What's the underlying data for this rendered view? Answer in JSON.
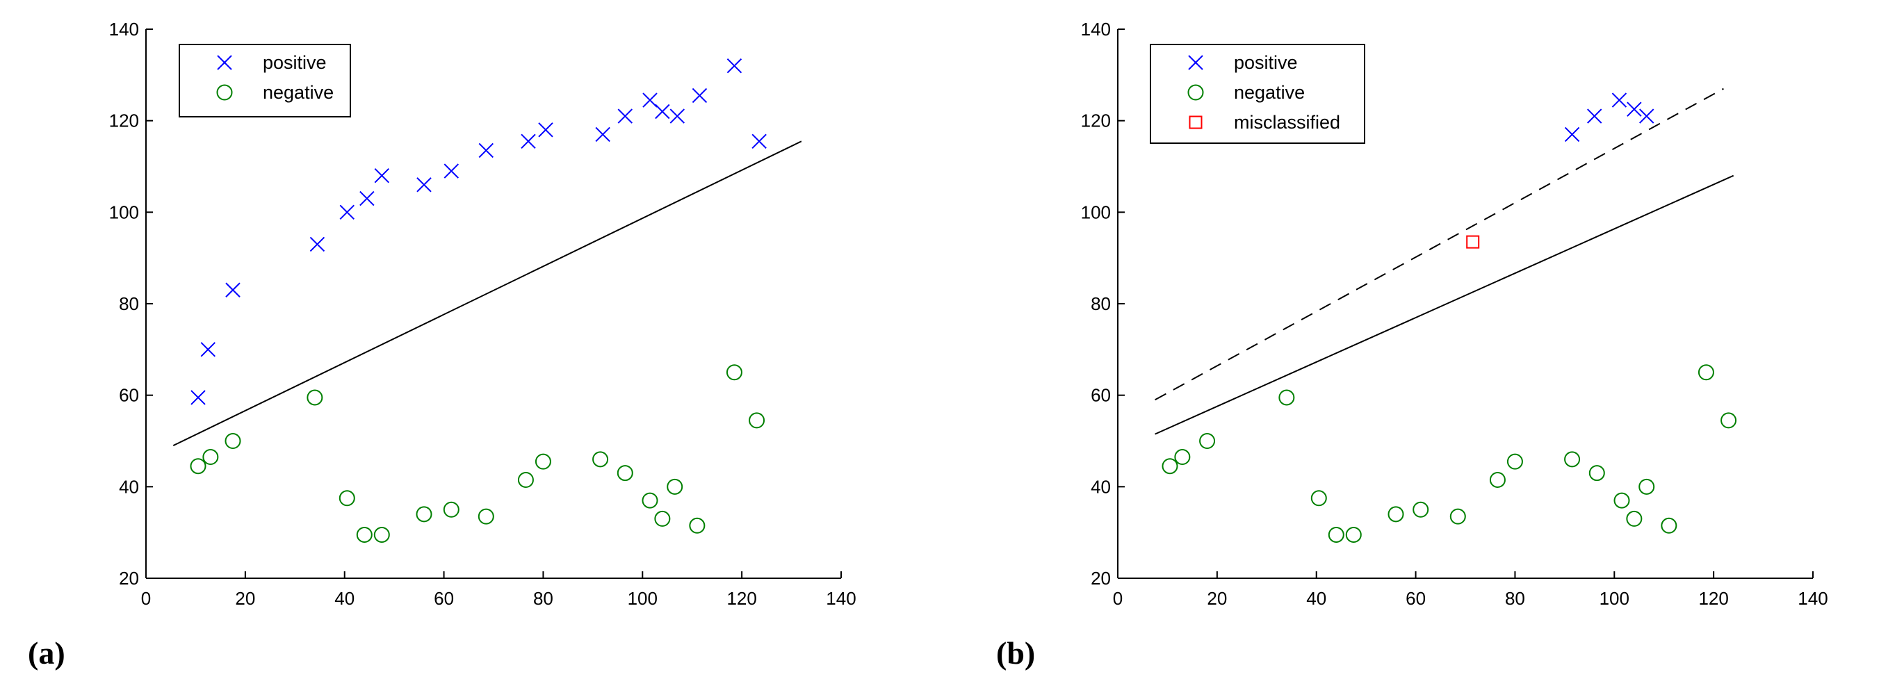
{
  "chart_data": [
    {
      "panel_label": "(a)",
      "type": "scatter",
      "title": "",
      "xlabel": "",
      "ylabel": "",
      "xlim": [
        0,
        140
      ],
      "ylim": [
        20,
        140
      ],
      "xticks": [
        0,
        20,
        40,
        60,
        80,
        100,
        120,
        140
      ],
      "yticks": [
        20,
        40,
        60,
        80,
        100,
        120,
        140
      ],
      "grid": false,
      "legend_position": "top-left",
      "series": [
        {
          "name": "positive",
          "marker": "x",
          "color": "#0000ff",
          "points": [
            [
              10.5,
              59.5
            ],
            [
              12.5,
              70
            ],
            [
              17.5,
              83
            ],
            [
              34.5,
              93
            ],
            [
              40.5,
              100
            ],
            [
              44.5,
              103
            ],
            [
              47.5,
              108
            ],
            [
              56,
              106
            ],
            [
              61.5,
              109
            ],
            [
              68.5,
              113.5
            ],
            [
              77,
              115.5
            ],
            [
              80.5,
              118
            ],
            [
              92,
              117
            ],
            [
              96.5,
              121
            ],
            [
              101.5,
              124.5
            ],
            [
              104,
              122
            ],
            [
              107,
              121
            ],
            [
              111.5,
              125.5
            ],
            [
              118.5,
              132
            ],
            [
              123.5,
              115.5
            ]
          ]
        },
        {
          "name": "negative",
          "marker": "o",
          "color": "#008000",
          "points": [
            [
              10.5,
              44.5
            ],
            [
              13,
              46.5
            ],
            [
              17.5,
              50
            ],
            [
              34,
              59.5
            ],
            [
              40.5,
              37.5
            ],
            [
              44,
              29.5
            ],
            [
              47.5,
              29.5
            ],
            [
              56,
              34
            ],
            [
              61.5,
              35
            ],
            [
              68.5,
              33.5
            ],
            [
              76.5,
              41.5
            ],
            [
              80,
              45.5
            ],
            [
              91.5,
              46
            ],
            [
              96.5,
              43
            ],
            [
              101.5,
              37
            ],
            [
              104,
              33
            ],
            [
              106.5,
              40
            ],
            [
              111,
              31.5
            ],
            [
              118.5,
              65
            ],
            [
              123,
              54.5
            ]
          ]
        }
      ],
      "lines": [
        {
          "style": "solid",
          "color": "#000000",
          "from": [
            5.5,
            49
          ],
          "to": [
            132,
            115.5
          ]
        }
      ]
    },
    {
      "panel_label": "(b)",
      "type": "scatter",
      "title": "",
      "xlabel": "",
      "ylabel": "",
      "xlim": [
        0,
        140
      ],
      "ylim": [
        20,
        140
      ],
      "xticks": [
        0,
        20,
        40,
        60,
        80,
        100,
        120,
        140
      ],
      "yticks": [
        20,
        40,
        60,
        80,
        100,
        120,
        140
      ],
      "grid": false,
      "legend_position": "top-left",
      "series": [
        {
          "name": "positive",
          "marker": "x",
          "color": "#0000ff",
          "points": [
            [
              91.5,
              117
            ],
            [
              96,
              121
            ],
            [
              101,
              124.5
            ],
            [
              104,
              122.5
            ],
            [
              106.5,
              121
            ]
          ]
        },
        {
          "name": "negative",
          "marker": "o",
          "color": "#008000",
          "points": [
            [
              10.5,
              44.5
            ],
            [
              13,
              46.5
            ],
            [
              18,
              50
            ],
            [
              34,
              59.5
            ],
            [
              40.5,
              37.5
            ],
            [
              44,
              29.5
            ],
            [
              47.5,
              29.5
            ],
            [
              56,
              34
            ],
            [
              61,
              35
            ],
            [
              68.5,
              33.5
            ],
            [
              76.5,
              41.5
            ],
            [
              80,
              45.5
            ],
            [
              91.5,
              46
            ],
            [
              96.5,
              43
            ],
            [
              101.5,
              37
            ],
            [
              104,
              33
            ],
            [
              106.5,
              40
            ],
            [
              111,
              31.5
            ],
            [
              118.5,
              65
            ],
            [
              123,
              54.5
            ]
          ]
        },
        {
          "name": "misclassified",
          "marker": "s",
          "color": "#ff0000",
          "points": [
            [
              71.5,
              93.5
            ]
          ]
        }
      ],
      "lines": [
        {
          "style": "solid",
          "color": "#000000",
          "from": [
            7.5,
            51.5
          ],
          "to": [
            124,
            108
          ]
        },
        {
          "style": "dashed",
          "color": "#000000",
          "from": [
            7.5,
            59
          ],
          "to": [
            122,
            127
          ]
        }
      ]
    }
  ]
}
